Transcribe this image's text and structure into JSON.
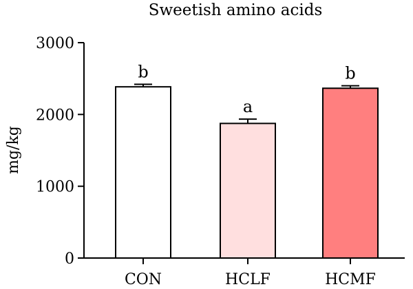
{
  "chart_data": {
    "type": "bar",
    "title": "Sweetish amino acids",
    "xlabel": "",
    "ylabel": "mg/kg",
    "ylim": [
      0,
      3000
    ],
    "yticks": [
      0,
      1000,
      2000,
      3000
    ],
    "categories": [
      "CON",
      "HCLF",
      "HCMF"
    ],
    "values": [
      2385,
      1875,
      2365
    ],
    "errors": [
      35,
      60,
      35
    ],
    "significance": [
      "b",
      "a",
      "b"
    ],
    "colors": [
      "#ffffff",
      "#ffdfdf",
      "#ff7f7f"
    ],
    "grid": false
  }
}
